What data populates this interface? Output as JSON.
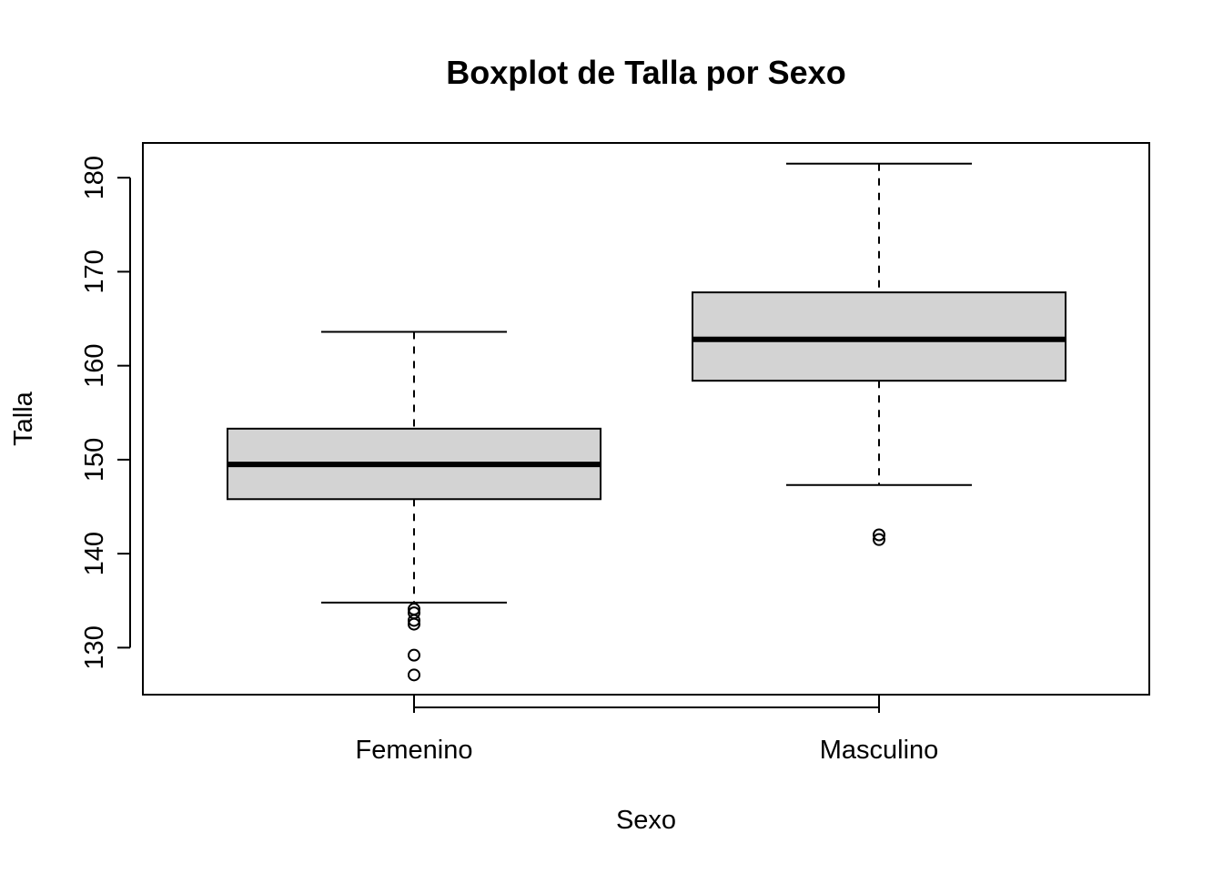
{
  "chart_data": {
    "type": "boxplot",
    "title": "Boxplot de Talla por Sexo",
    "xlabel": "Sexo",
    "ylabel": "Talla",
    "ylim": [
      125,
      183.7
    ],
    "yticks": [
      130,
      140,
      150,
      160,
      170,
      180
    ],
    "grid": false,
    "box_fill": "#d3d3d3",
    "categories": [
      "Femenino",
      "Masculino"
    ],
    "boxes": [
      {
        "name": "Femenino",
        "whisker_low": 134.8,
        "q1": 145.8,
        "median": 149.5,
        "q3": 153.3,
        "whisker_high": 163.6,
        "outliers": [
          134.1,
          133.7,
          132.9,
          132.5,
          129.2,
          127.1
        ]
      },
      {
        "name": "Masculino",
        "whisker_low": 147.3,
        "q1": 158.4,
        "median": 162.8,
        "q3": 167.8,
        "whisker_high": 181.5,
        "outliers": [
          142.0,
          141.5
        ]
      }
    ]
  }
}
